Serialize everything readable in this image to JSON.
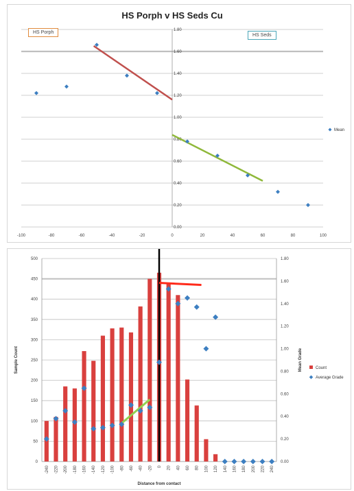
{
  "colors": {
    "point": "#3d7fc1",
    "bar": "#d9403e",
    "trend_porph": "#c0504d",
    "trend_seds": "#8fb83a",
    "trend_count": "#ff2a1a",
    "trend_grade_green": "#92d050",
    "contact_line": "#000000",
    "grid": "#bfbfbf"
  },
  "chart_data": [
    {
      "type": "scatter",
      "title": "HS Porph v HS Seds Cu",
      "legend": {
        "label": "Mean",
        "placement": "right"
      },
      "annotations": [
        "HS Porph",
        "HS Seds"
      ],
      "xlim": [
        -100,
        100
      ],
      "ylim": [
        0,
        1.8
      ],
      "x_ticks": [
        "-100",
        "-80",
        "-60",
        "-40",
        "-20",
        "0",
        "20",
        "40",
        "60",
        "80",
        "100"
      ],
      "y_ticks": [
        "0.00",
        "0.20",
        "0.40",
        "0.60",
        "0.80",
        "1.00",
        "1.20",
        "1.40",
        "1.60",
        "1.80"
      ],
      "grid": true,
      "x": [
        -90,
        -70,
        -50,
        -30,
        -10,
        10,
        30,
        50,
        70,
        90
      ],
      "y": [
        1.22,
        1.28,
        1.66,
        1.38,
        1.22,
        0.78,
        0.65,
        0.47,
        0.32,
        0.2
      ],
      "trendlines": [
        {
          "x": [
            -52,
            0
          ],
          "y": [
            1.65,
            1.16
          ]
        },
        {
          "x": [
            0,
            60
          ],
          "y": [
            0.84,
            0.42
          ]
        }
      ]
    },
    {
      "type": "bar",
      "xlabel": "Distance from contact",
      "ylabel_left": "Sample Count",
      "ylabel_right": "Mean Grade",
      "ylim_left": [
        0,
        500
      ],
      "ylim_right": [
        0,
        1.8
      ],
      "y_ticks_left": [
        "0",
        "50",
        "100",
        "150",
        "200",
        "250",
        "300",
        "350",
        "400",
        "450",
        "500"
      ],
      "y_ticks_right": [
        "0.00",
        "0.20",
        "0.40",
        "0.60",
        "0.80",
        "1.00",
        "1.20",
        "1.40",
        "1.60",
        "1.80"
      ],
      "categories": [
        "-240",
        "-220",
        "-200",
        "-180",
        "-160",
        "-140",
        "-120",
        "-100",
        "-80",
        "-60",
        "-40",
        "-20",
        "0",
        "20",
        "40",
        "60",
        "80",
        "100",
        "120",
        "140",
        "160",
        "180",
        "200",
        "220",
        "240"
      ],
      "legend": {
        "placement": "right",
        "entries": [
          "Count",
          "Average Grade"
        ]
      },
      "series": [
        {
          "name": "Count",
          "type": "bar",
          "values": [
            100,
            110,
            185,
            180,
            272,
            248,
            310,
            328,
            330,
            318,
            382,
            450,
            465,
            440,
            410,
            202,
            138,
            55,
            18,
            0,
            0,
            0,
            0,
            0,
            0
          ]
        },
        {
          "name": "Average Grade",
          "type": "scatter",
          "axis": "right",
          "values": [
            0.2,
            0.38,
            0.45,
            0.35,
            0.65,
            0.29,
            0.3,
            0.32,
            0.33,
            0.5,
            0.45,
            0.48,
            0.88,
            1.53,
            1.4,
            1.45,
            1.37,
            1.0,
            1.28,
            0,
            0,
            0,
            0,
            0,
            0
          ]
        }
      ],
      "contact_line_x": 0,
      "trendlines": [
        {
          "axis": "left",
          "x": [
            0,
            90
          ],
          "y": [
            440,
            435
          ]
        },
        {
          "axis": "right",
          "x": [
            -80,
            -20
          ],
          "y": [
            0.34,
            0.55
          ]
        }
      ]
    }
  ]
}
